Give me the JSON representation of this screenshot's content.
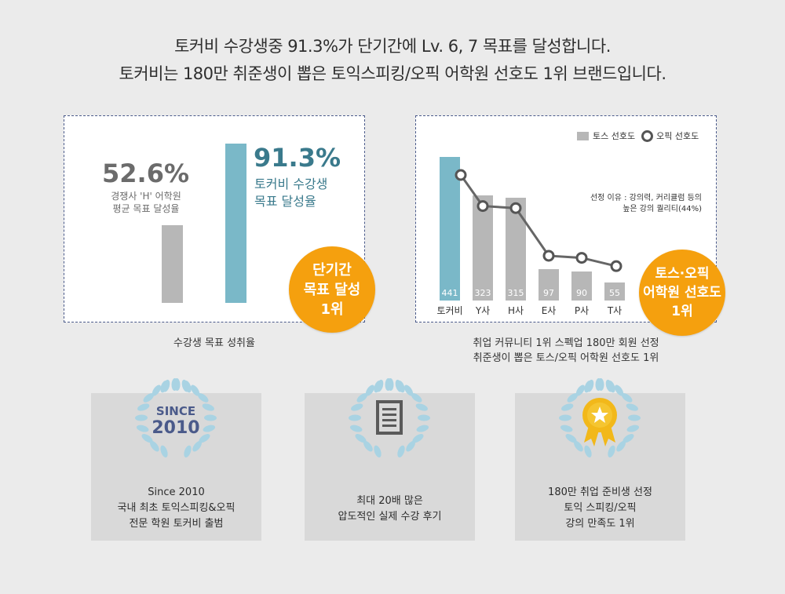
{
  "headline": {
    "line1": "토커비 수강생중 91.3%가 단기간에 Lv. 6, 7 목표를 달성합니다.",
    "line2": "토커비는 180만 취준생이 뽑은 토익스피킹/오픽 어학원 선호도 1위 브랜드입니다."
  },
  "colors": {
    "accent": "#7ab8c8",
    "gray_bar": "#b7b7b7",
    "orange": "#f5a00e",
    "dark_teal": "#3a7a8c",
    "gray_text": "#6b6b6b"
  },
  "chart_data": [
    {
      "type": "bar",
      "categories": [
        "경쟁사 'H' 어학원 평균 목표 달성율",
        "토커비 수강생 목표 달성율"
      ],
      "values": [
        52.6,
        91.3
      ],
      "labels": [
        "52.6%",
        "91.3%"
      ],
      "desc": [
        "경쟁사 'H' 어학원",
        "평균 목표 달성율",
        "토커비 수강생",
        "목표 달성율"
      ],
      "caption": "수강생 목표 성취율",
      "badge": [
        "단기간",
        "목표 달성",
        "1위"
      ]
    },
    {
      "type": "bar",
      "categories": [
        "토커비",
        "Y사",
        "H사",
        "E사",
        "P사",
        "T사"
      ],
      "values": [
        441,
        323,
        315,
        97,
        90,
        55
      ],
      "line": [
        1.0,
        0.7,
        0.68,
        0.22,
        0.2,
        0.12
      ],
      "legend": [
        "토스 선호도",
        "오픽 선호도"
      ],
      "note": [
        "선정 이유 : 강의력, 커리큘럼 등의",
        "높은 강의 퀄리티(44%)"
      ],
      "caption": [
        "취업 커뮤니티 1위 스펙업 180만 회원 선정",
        "취준생이 뽑은 토스/오픽 어학원 선호도 1위"
      ],
      "badge": [
        "토스·오픽",
        "어학원 선호도",
        "1위"
      ]
    }
  ],
  "cards": [
    {
      "emblem_line1": "SINCE",
      "emblem_line2": "2010",
      "lines": [
        "Since 2010",
        "국내 최초 토익스피킹&오픽",
        "전문 학원 토커비 출범"
      ]
    },
    {
      "lines": [
        "최대 20배 많은",
        "압도적인 실제 수강 후기"
      ]
    },
    {
      "lines": [
        "180만 취업 준비생 선정",
        "토익 스피킹/오픽",
        "강의 만족도 1위"
      ]
    }
  ]
}
